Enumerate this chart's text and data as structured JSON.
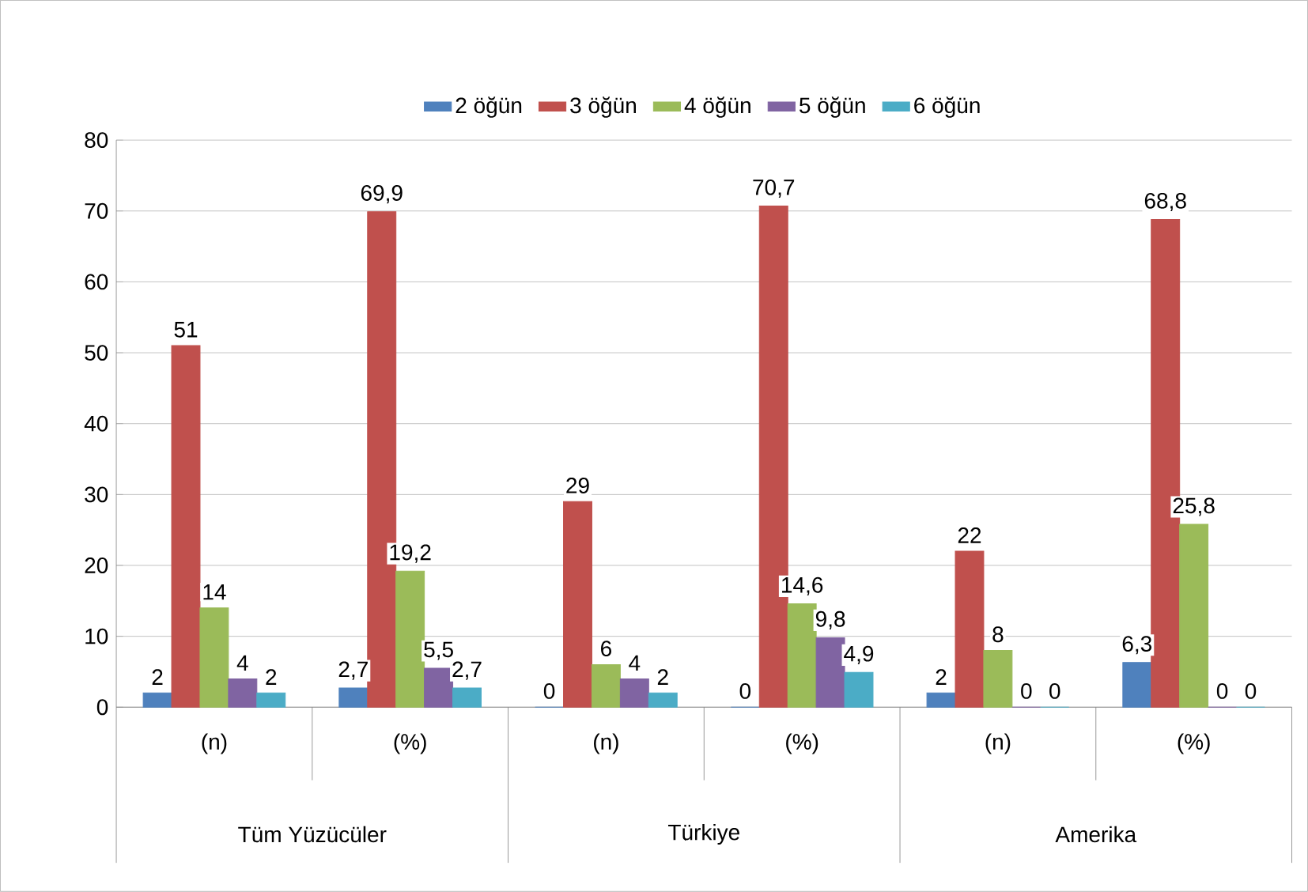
{
  "chart_data": {
    "type": "bar",
    "categories": [
      "(n)",
      "(%)",
      "(n)",
      "(%)",
      "(n)",
      "(%)"
    ],
    "annotations": [
      "Tüm Yüzücüler",
      "Türkiye",
      "Amerika"
    ],
    "series": [
      {
        "name": "2 öğün",
        "color": "#4f81bd",
        "values": [
          2,
          2.7,
          0,
          0,
          2,
          6.3
        ],
        "value_labels": [
          "2",
          "2,7",
          "0",
          "0",
          "2",
          "6,3"
        ]
      },
      {
        "name": "3 öğün",
        "color": "#c0504d",
        "values": [
          51,
          69.9,
          29,
          70.7,
          22,
          68.8
        ],
        "value_labels": [
          "51",
          "69,9",
          "29",
          "70,7",
          "22",
          "68,8"
        ]
      },
      {
        "name": "4 öğün",
        "color": "#9bbb59",
        "values": [
          14,
          19.2,
          6,
          14.6,
          8,
          25.8
        ],
        "value_labels": [
          "14",
          "19,2",
          "6",
          "14,6",
          "8",
          "25,8"
        ]
      },
      {
        "name": "5 öğün",
        "color": "#8064a2",
        "values": [
          4,
          5.5,
          4,
          9.8,
          0,
          0
        ],
        "value_labels": [
          "4",
          "5,5",
          "4",
          "9,8",
          "0",
          "0"
        ]
      },
      {
        "name": "6 öğün",
        "color": "#4bacc6",
        "values": [
          2,
          2.7,
          2,
          4.9,
          0,
          0
        ],
        "value_labels": [
          "2",
          "2,7",
          "2",
          "4,9",
          "0",
          "0"
        ]
      }
    ],
    "ylim": [
      0,
      80
    ],
    "yticks": [
      0,
      10,
      20,
      30,
      40,
      50,
      60,
      70,
      80
    ],
    "grid": "y",
    "legend": "top"
  }
}
